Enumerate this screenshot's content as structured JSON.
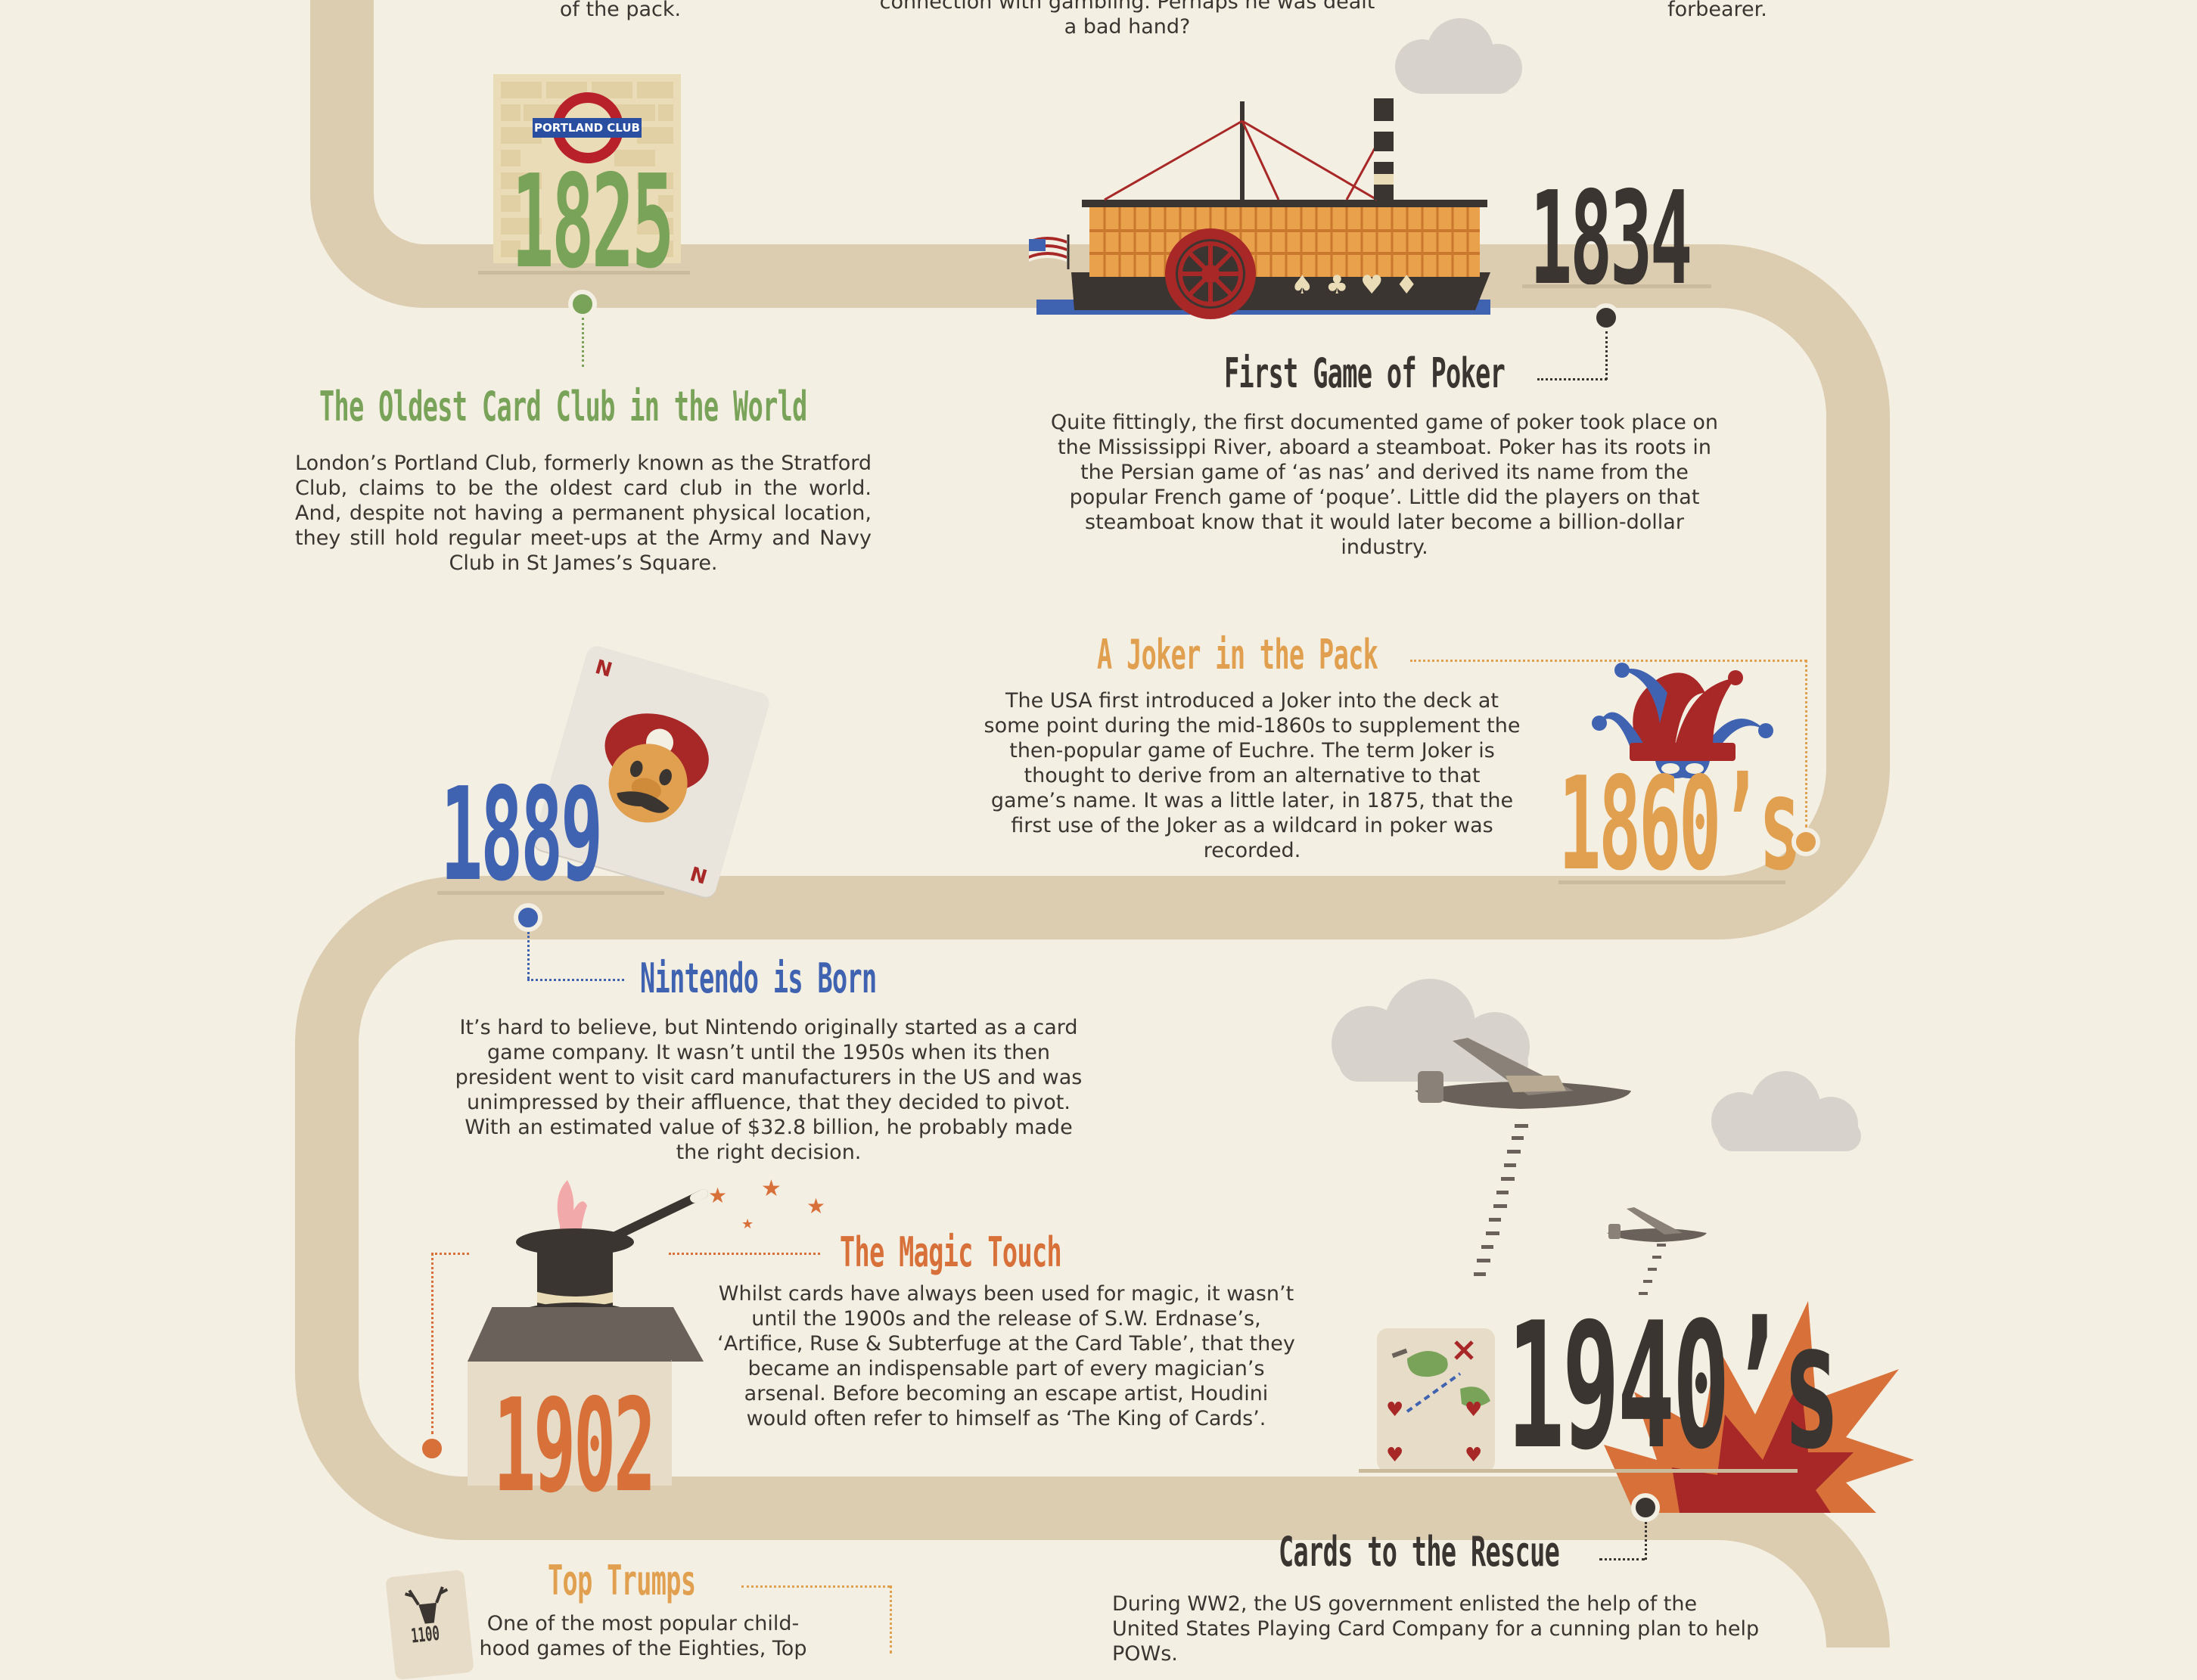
{
  "top_fragments": {
    "left": "of the pack.",
    "center": "connection with gambling. Perhaps he was dealt\na bad hand?",
    "right": "forbearer."
  },
  "events": {
    "portland": {
      "year": "1825",
      "sign": "PORTLAND CLUB",
      "title": "The Oldest Card Club in the World",
      "text": "London’s Portland Club, formerly known as the Stratford Club, claims to be the oldest card club in the world. And, despite not having a permanent physical location, they still hold regular meet-ups at the Army and Navy Club in St James’s Square.",
      "color": "#7aa35a"
    },
    "poker": {
      "year": "1834",
      "title": "First Game of Poker",
      "text": "Quite fittingly, the first documented game of poker took place on the Mississippi River, aboard a steamboat. Poker has its roots in the Persian game of ‘as nas’ and derived its name from the popular French game of ‘poque’. Little did the players on that steamboat know that it would later become a billion-dollar industry.",
      "color": "#3a3530"
    },
    "joker": {
      "year": "1860’s",
      "title": "A Joker in the Pack",
      "text": "The USA first introduced a Joker into the deck at some point during the mid-1860s to supplement the then-popular game of Euchre. The term Joker is thought to derive from an alternative to that game’s name. It was a little later, in 1875, that the first use of the Joker as a wildcard in poker was recorded.",
      "color": "#e0a050"
    },
    "nintendo": {
      "year": "1889",
      "card_letter": "N",
      "title": "Nintendo is Born",
      "text": "It’s hard to believe, but Nintendo originally started as a card game company. It wasn’t until the 1950s when its then president went to visit card manufacturers in the US and was unimpressed by their affluence, that they decided to pivot. With an estimated value of $32.8 billion, he probably made the right decision.",
      "color": "#3f63b0"
    },
    "magic": {
      "year": "1902",
      "title": "The Magic Touch",
      "text": "Whilst cards have always been used for magic, it wasn’t until the 1900s and the release of S.W. Erdnase’s, ‘Artifice, Ruse & Subterfuge at the Card Table’, that they became an indispensable part of every magician’s arsenal. Before becoming an escape artist, Houdini would often refer to himself as ‘The King of Cards’.",
      "color": "#d8703a"
    },
    "rescue": {
      "year": "1940’s",
      "title": "Cards to the Rescue",
      "text": "During WW2, the US government enlisted the help of the United States Playing Card Company for a cunning plan to help POWs.",
      "color": "#3a3530"
    },
    "trumps": {
      "year": "1100",
      "title": "Top Trumps",
      "text": "One of the most popular child-hood games of the Eighties, Top",
      "color": "#e0a050"
    }
  },
  "colors": {
    "background": "#f4efe3",
    "path": "#dccdb1",
    "green": "#7aa35a",
    "dark": "#3a3530",
    "orange": "#e0a050",
    "blue": "#3f63b0",
    "rust": "#d8703a",
    "red": "#a82828"
  },
  "icons": [
    "portland-sign-icon",
    "steamboat-icon",
    "us-flag-icon",
    "jester-hat-icon",
    "mario-card-icon",
    "magic-hat-icon",
    "bomber-plane-icon",
    "map-card-icon",
    "explosion-icon",
    "stag-card-icon",
    "cloud-icon"
  ]
}
